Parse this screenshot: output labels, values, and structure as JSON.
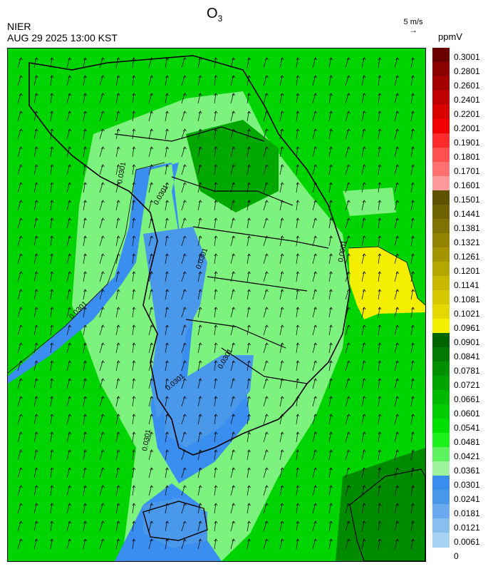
{
  "header": {
    "agency": "NIER",
    "timestamp": "AUG 29 2025 13:00 KST",
    "title_main": "O",
    "title_sub": "3"
  },
  "wind_legend": {
    "label": "5 m/s",
    "arrow": "→"
  },
  "colorbar": {
    "unit": "ppmV",
    "ticks": [
      "0.3001",
      "0.2801",
      "0.2601",
      "0.2401",
      "0.2201",
      "0.2001",
      "0.1901",
      "0.1801",
      "0.1701",
      "0.1601",
      "0.1501",
      "0.1441",
      "0.1381",
      "0.1321",
      "0.1261",
      "0.1201",
      "0.1141",
      "0.1081",
      "0.1021",
      "0.0961",
      "0.0901",
      "0.0841",
      "0.0781",
      "0.0721",
      "0.0661",
      "0.0601",
      "0.0541",
      "0.0481",
      "0.0421",
      "0.0361",
      "0.0301",
      "0.0241",
      "0.0181",
      "0.0121",
      "0.0061",
      "0"
    ],
    "colors": [
      "#6b0000",
      "#8b0000",
      "#a50000",
      "#bf0000",
      "#d90000",
      "#f00000",
      "#ff2a2a",
      "#ff5050",
      "#ff7070",
      "#ff9a9a",
      "#5c5200",
      "#6e6200",
      "#807200",
      "#928200",
      "#a49400",
      "#b6a600",
      "#c8b800",
      "#d6c800",
      "#e4d800",
      "#f4ee00",
      "#006400",
      "#007a00",
      "#008f00",
      "#00a400",
      "#00b900",
      "#00cc00",
      "#00e000",
      "#1ef01e",
      "#5ef25e",
      "#9ef59e",
      "#3a8ef0",
      "#4a98ea",
      "#6aaaee",
      "#88bff0",
      "#a8d2f4"
    ]
  },
  "contour_labels": [
    "0.0301",
    "0.0301",
    "0.0301",
    "0.0301",
    "0.0301",
    "0.0301",
    "0.0301",
    "0.0901"
  ]
}
